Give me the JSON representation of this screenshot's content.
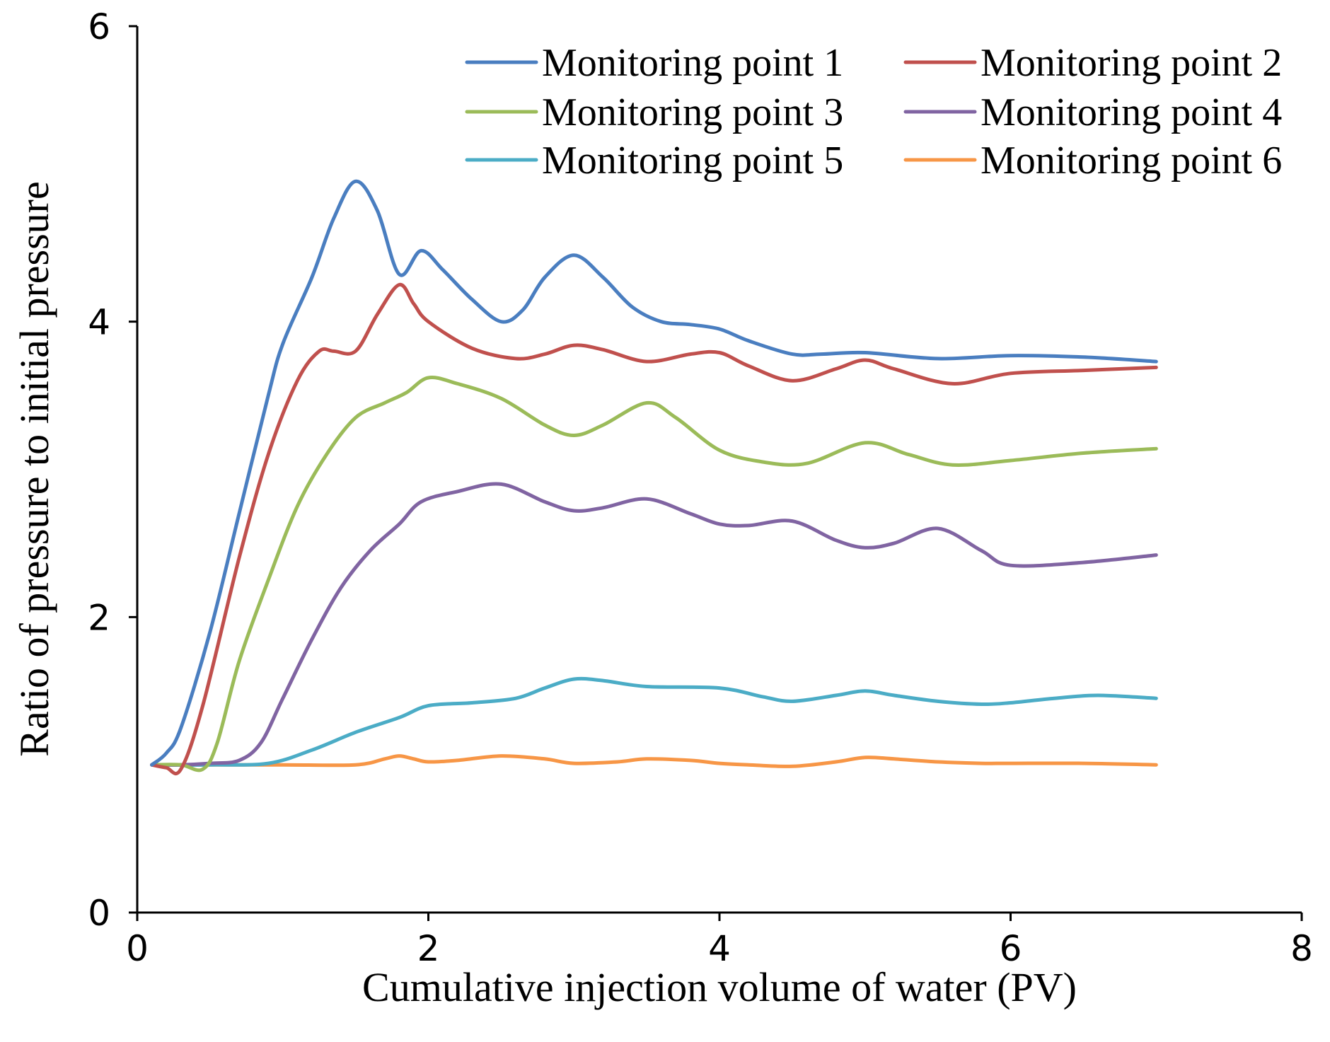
{
  "chart_data": {
    "type": "line",
    "title": "",
    "xlabel": "Cumulative injection volume of water (PV)",
    "ylabel": "Ratio of pressure to initial pressure",
    "xlim": [
      0,
      8
    ],
    "ylim": [
      0,
      6
    ],
    "xticks": [
      0,
      2,
      4,
      6,
      8
    ],
    "yticks": [
      0,
      2,
      4,
      6
    ],
    "grid": false,
    "legend_position": "top-right",
    "series": [
      {
        "name": "Monitoring point 1",
        "color": "#4A7EC0",
        "x": [
          0.1,
          0.2,
          0.3,
          0.5,
          0.7,
          0.9,
          1.0,
          1.2,
          1.35,
          1.5,
          1.65,
          1.8,
          1.95,
          2.1,
          2.3,
          2.5,
          2.65,
          2.8,
          3.0,
          3.2,
          3.4,
          3.6,
          3.8,
          4.0,
          4.2,
          4.5,
          4.7,
          5.0,
          5.5,
          6.0,
          6.5,
          7.0
        ],
        "y": [
          1.0,
          1.08,
          1.25,
          1.9,
          2.7,
          3.5,
          3.85,
          4.3,
          4.7,
          4.95,
          4.75,
          4.32,
          4.48,
          4.35,
          4.15,
          4.0,
          4.08,
          4.3,
          4.45,
          4.3,
          4.1,
          4.0,
          3.98,
          3.95,
          3.87,
          3.78,
          3.78,
          3.79,
          3.75,
          3.77,
          3.76,
          3.73
        ]
      },
      {
        "name": "Monitoring point 2",
        "color": "#C0504D",
        "x": [
          0.1,
          0.2,
          0.3,
          0.45,
          0.7,
          0.9,
          1.1,
          1.25,
          1.35,
          1.5,
          1.65,
          1.8,
          1.9,
          2.0,
          2.3,
          2.6,
          2.8,
          3.0,
          3.2,
          3.5,
          3.8,
          4.0,
          4.2,
          4.5,
          4.8,
          5.0,
          5.2,
          5.6,
          6.0,
          6.5,
          7.0
        ],
        "y": [
          1.0,
          0.98,
          0.97,
          1.4,
          2.4,
          3.1,
          3.6,
          3.8,
          3.8,
          3.8,
          4.05,
          4.25,
          4.12,
          4.0,
          3.82,
          3.75,
          3.78,
          3.84,
          3.81,
          3.73,
          3.78,
          3.79,
          3.7,
          3.6,
          3.68,
          3.74,
          3.68,
          3.58,
          3.65,
          3.67,
          3.69
        ]
      },
      {
        "name": "Monitoring point 3",
        "color": "#9BBB59",
        "x": [
          0.1,
          0.3,
          0.45,
          0.55,
          0.7,
          0.9,
          1.1,
          1.3,
          1.5,
          1.7,
          1.85,
          2.0,
          2.2,
          2.5,
          2.8,
          3.0,
          3.2,
          3.5,
          3.7,
          4.0,
          4.3,
          4.6,
          5.0,
          5.3,
          5.6,
          6.0,
          6.5,
          7.0
        ],
        "y": [
          1.0,
          1.0,
          0.97,
          1.15,
          1.7,
          2.25,
          2.75,
          3.1,
          3.35,
          3.45,
          3.52,
          3.62,
          3.58,
          3.48,
          3.3,
          3.23,
          3.3,
          3.45,
          3.35,
          3.13,
          3.05,
          3.04,
          3.18,
          3.1,
          3.03,
          3.06,
          3.11,
          3.14
        ]
      },
      {
        "name": "Monitoring point 4",
        "color": "#8064A2",
        "x": [
          0.1,
          0.3,
          0.5,
          0.7,
          0.85,
          1.0,
          1.2,
          1.4,
          1.6,
          1.8,
          1.95,
          2.2,
          2.5,
          2.8,
          3.0,
          3.2,
          3.5,
          3.8,
          4.0,
          4.2,
          4.5,
          4.8,
          5.0,
          5.2,
          5.5,
          5.8,
          6.0,
          6.5,
          7.0
        ],
        "y": [
          1.0,
          1.0,
          1.01,
          1.03,
          1.15,
          1.45,
          1.85,
          2.2,
          2.45,
          2.63,
          2.78,
          2.85,
          2.9,
          2.78,
          2.72,
          2.74,
          2.8,
          2.7,
          2.63,
          2.62,
          2.65,
          2.52,
          2.47,
          2.5,
          2.6,
          2.45,
          2.35,
          2.37,
          2.42
        ]
      },
      {
        "name": "Monitoring point 5",
        "color": "#4BACC6",
        "x": [
          0.1,
          0.5,
          0.9,
          1.2,
          1.5,
          1.8,
          2.0,
          2.3,
          2.6,
          2.8,
          3.0,
          3.2,
          3.5,
          4.0,
          4.3,
          4.5,
          4.8,
          5.0,
          5.2,
          5.5,
          5.8,
          6.0,
          6.3,
          6.6,
          7.0
        ],
        "y": [
          1.0,
          1.0,
          1.01,
          1.1,
          1.22,
          1.32,
          1.4,
          1.42,
          1.45,
          1.52,
          1.58,
          1.57,
          1.53,
          1.52,
          1.46,
          1.43,
          1.47,
          1.5,
          1.47,
          1.43,
          1.41,
          1.42,
          1.45,
          1.47,
          1.45
        ]
      },
      {
        "name": "Monitoring point 6",
        "color": "#F79646",
        "x": [
          0.1,
          0.5,
          1.0,
          1.5,
          1.7,
          1.8,
          1.9,
          2.0,
          2.2,
          2.5,
          2.8,
          3.0,
          3.3,
          3.5,
          3.8,
          4.0,
          4.2,
          4.5,
          4.8,
          5.0,
          5.2,
          5.5,
          5.8,
          6.0,
          6.5,
          7.0
        ],
        "y": [
          1.0,
          1.0,
          1.0,
          1.0,
          1.04,
          1.06,
          1.04,
          1.02,
          1.03,
          1.06,
          1.04,
          1.01,
          1.02,
          1.04,
          1.03,
          1.01,
          1.0,
          0.99,
          1.02,
          1.05,
          1.04,
          1.02,
          1.01,
          1.01,
          1.01,
          1.0
        ]
      }
    ]
  }
}
